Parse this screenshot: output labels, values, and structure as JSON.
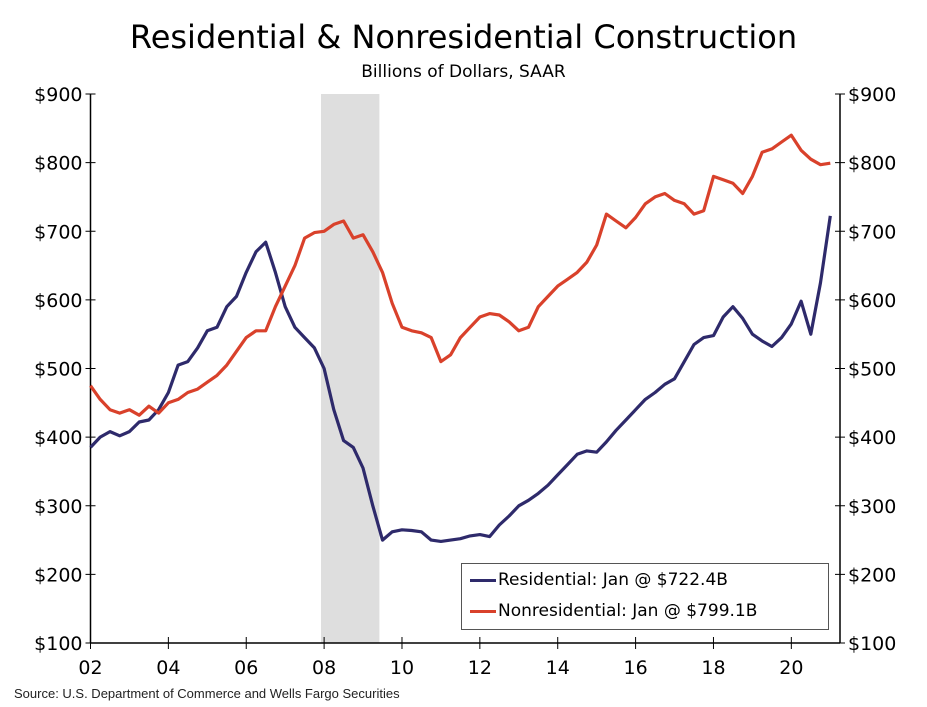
{
  "chart_data": {
    "type": "line",
    "title": "Residential & Nonresidential Construction",
    "subtitle": "Billions of Dollars, SAAR",
    "source": "Source: U.S. Department of Commerce and Wells Fargo Securities",
    "ylim": [
      100,
      900
    ],
    "xlim": [
      2002,
      2021.25
    ],
    "y_ticks": [
      "$100",
      "$200",
      "$300",
      "$400",
      "$500",
      "$600",
      "$700",
      "$800",
      "$900"
    ],
    "y_tick_values": [
      100,
      200,
      300,
      400,
      500,
      600,
      700,
      800,
      900
    ],
    "x_ticks": [
      "02",
      "04",
      "06",
      "08",
      "10",
      "12",
      "14",
      "16",
      "18",
      "20"
    ],
    "x_tick_values": [
      2002,
      2004,
      2006,
      2008,
      2010,
      2012,
      2014,
      2016,
      2018,
      2020
    ],
    "y_axes": "both left and right",
    "grid": false,
    "legend_position": "bottom-right",
    "recession_shading": {
      "start": 2007.92,
      "end": 2009.42,
      "color": "#dedede"
    },
    "x": [
      2002.0,
      2002.25,
      2002.5,
      2002.75,
      2003.0,
      2003.25,
      2003.5,
      2003.75,
      2004.0,
      2004.25,
      2004.5,
      2004.75,
      2005.0,
      2005.25,
      2005.5,
      2005.75,
      2006.0,
      2006.25,
      2006.5,
      2006.75,
      2007.0,
      2007.25,
      2007.5,
      2007.75,
      2008.0,
      2008.25,
      2008.5,
      2008.75,
      2009.0,
      2009.25,
      2009.5,
      2009.75,
      2010.0,
      2010.25,
      2010.5,
      2010.75,
      2011.0,
      2011.25,
      2011.5,
      2011.75,
      2012.0,
      2012.25,
      2012.5,
      2012.75,
      2013.0,
      2013.25,
      2013.5,
      2013.75,
      2014.0,
      2014.25,
      2014.5,
      2014.75,
      2015.0,
      2015.25,
      2015.5,
      2015.75,
      2016.0,
      2016.25,
      2016.5,
      2016.75,
      2017.0,
      2017.25,
      2017.5,
      2017.75,
      2018.0,
      2018.25,
      2018.5,
      2018.75,
      2019.0,
      2019.25,
      2019.5,
      2019.75,
      2020.0,
      2020.25,
      2020.5,
      2020.75,
      2021.0
    ],
    "series": [
      {
        "name": "Residential: Jan @ $722.4B",
        "color": "#2e2a6b",
        "values": [
          385,
          400,
          408,
          402,
          408,
          422,
          425,
          440,
          465,
          505,
          510,
          530,
          555,
          560,
          590,
          605,
          640,
          670,
          684,
          640,
          590,
          560,
          545,
          530,
          500,
          440,
          395,
          385,
          355,
          300,
          250,
          262,
          265,
          264,
          262,
          250,
          248,
          250,
          252,
          256,
          258,
          255,
          272,
          285,
          300,
          308,
          318,
          330,
          345,
          360,
          375,
          380,
          378,
          393,
          410,
          425,
          440,
          455,
          465,
          477,
          485,
          510,
          535,
          545,
          548,
          575,
          590,
          573,
          550,
          540,
          532,
          545,
          565,
          598,
          550,
          625,
          722.4
        ]
      },
      {
        "name": "Nonresidential: Jan @ $799.1B",
        "color": "#d9412b",
        "values": [
          475,
          455,
          440,
          435,
          440,
          432,
          445,
          435,
          450,
          455,
          465,
          470,
          480,
          490,
          505,
          525,
          545,
          555,
          555,
          590,
          620,
          650,
          690,
          698,
          700,
          710,
          715,
          690,
          695,
          670,
          640,
          595,
          560,
          555,
          552,
          545,
          510,
          520,
          545,
          560,
          575,
          580,
          578,
          568,
          555,
          560,
          590,
          605,
          620,
          630,
          640,
          655,
          680,
          725,
          715,
          705,
          720,
          740,
          750,
          755,
          745,
          740,
          725,
          730,
          780,
          775,
          770,
          755,
          780,
          815,
          820,
          830,
          840,
          818,
          805,
          797,
          799.1
        ]
      }
    ]
  }
}
